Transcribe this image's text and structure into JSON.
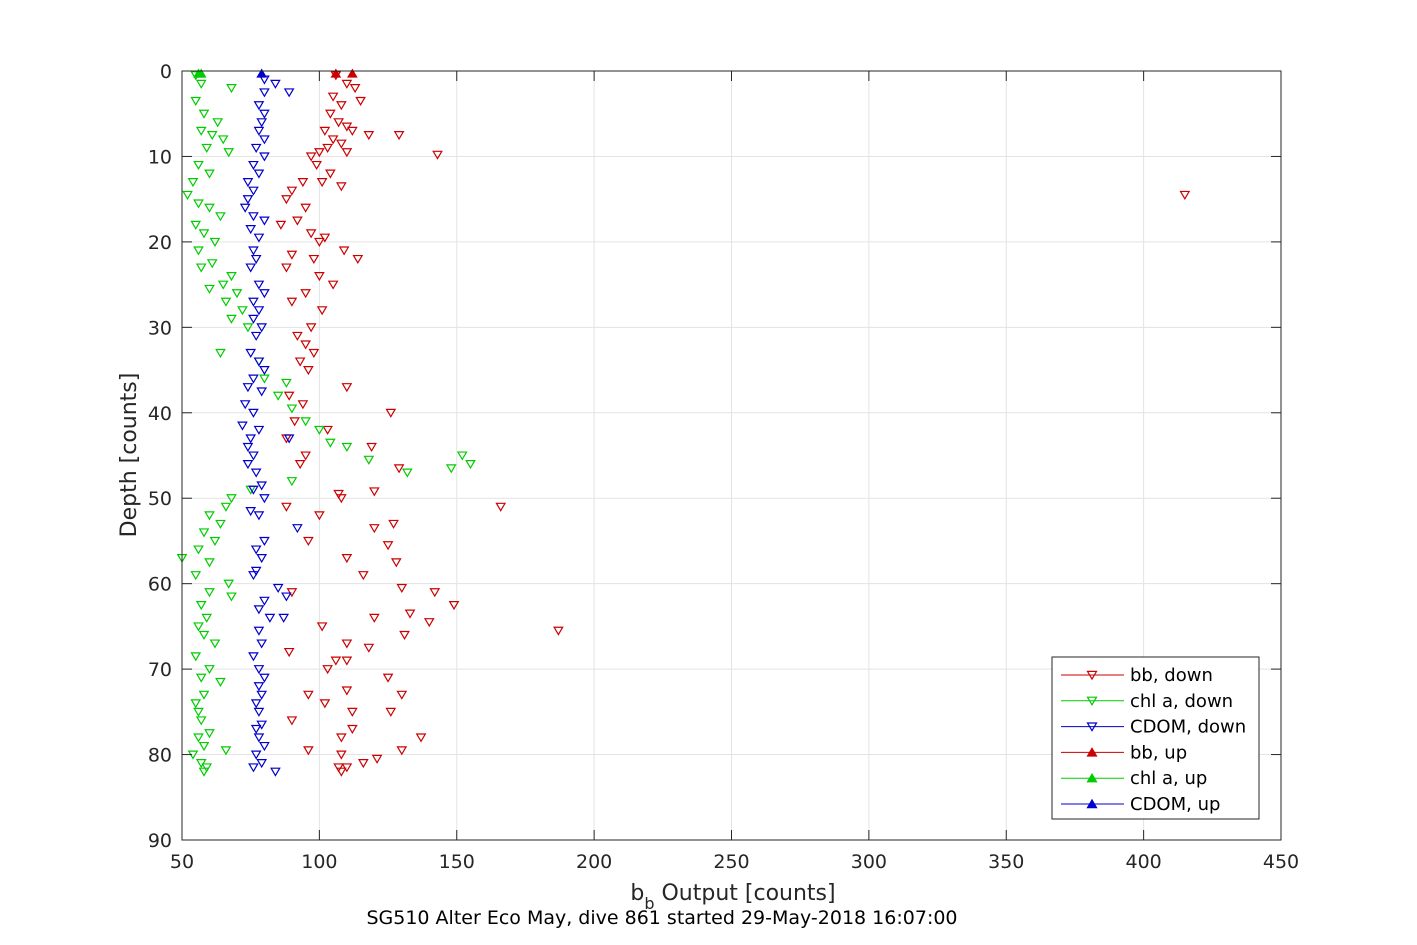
{
  "chart_data": {
    "type": "scatter",
    "xlabel_main": "b",
    "xlabel_sub": "b",
    "xlabel_rest": " Output [counts]",
    "ylabel": "Depth [counts]",
    "caption": "SG510 Alter Eco May, dive 861 started 29-May-2018 16:07:00",
    "xlim": [
      50,
      450
    ],
    "ylim": [
      0,
      90
    ],
    "y_reversed": true,
    "xticks": [
      50,
      100,
      150,
      200,
      250,
      300,
      350,
      400,
      450
    ],
    "yticks": [
      0,
      10,
      20,
      30,
      40,
      50,
      60,
      70,
      80,
      90
    ],
    "grid": true,
    "legend_position": "bottom-right",
    "series": [
      {
        "name": "bb, down",
        "color": "#cc0000",
        "marker": "down",
        "points": [
          [
            106,
            0.5
          ],
          [
            110,
            1.5
          ],
          [
            113,
            2
          ],
          [
            105,
            3
          ],
          [
            108,
            4
          ],
          [
            115,
            3.5
          ],
          [
            104,
            5
          ],
          [
            107,
            6
          ],
          [
            110,
            6.5
          ],
          [
            112,
            7
          ],
          [
            118,
            7.5
          ],
          [
            129,
            7.5
          ],
          [
            102,
            7
          ],
          [
            105,
            8
          ],
          [
            108,
            8.5
          ],
          [
            103,
            9
          ],
          [
            100,
            9.5
          ],
          [
            110,
            9.5
          ],
          [
            97,
            10
          ],
          [
            143,
            9.8
          ],
          [
            99,
            11
          ],
          [
            104,
            12
          ],
          [
            101,
            13
          ],
          [
            108,
            13.5
          ],
          [
            94,
            13
          ],
          [
            90,
            14
          ],
          [
            88,
            15
          ],
          [
            95,
            16
          ],
          [
            92,
            17.5
          ],
          [
            86,
            18
          ],
          [
            97,
            19
          ],
          [
            102,
            19.5
          ],
          [
            100,
            20
          ],
          [
            109,
            21
          ],
          [
            90,
            21.5
          ],
          [
            98,
            22
          ],
          [
            114,
            22
          ],
          [
            88,
            23
          ],
          [
            100,
            24
          ],
          [
            105,
            25
          ],
          [
            95,
            26
          ],
          [
            90,
            27
          ],
          [
            101,
            28
          ],
          [
            97,
            30
          ],
          [
            92,
            31
          ],
          [
            95,
            32
          ],
          [
            98,
            33
          ],
          [
            93,
            34
          ],
          [
            96,
            35
          ],
          [
            110,
            37
          ],
          [
            89,
            38
          ],
          [
            94,
            39
          ],
          [
            126,
            40
          ],
          [
            91,
            41
          ],
          [
            103,
            42
          ],
          [
            88,
            43
          ],
          [
            119,
            44
          ],
          [
            95,
            45
          ],
          [
            93,
            46
          ],
          [
            129,
            46.5
          ],
          [
            107,
            49.5
          ],
          [
            120,
            49.2
          ],
          [
            108,
            50
          ],
          [
            166,
            51
          ],
          [
            88,
            51
          ],
          [
            100,
            52
          ],
          [
            127,
            53
          ],
          [
            120,
            53.5
          ],
          [
            96,
            55
          ],
          [
            125,
            55.5
          ],
          [
            110,
            57
          ],
          [
            128,
            57.5
          ],
          [
            116,
            59
          ],
          [
            130,
            60.5
          ],
          [
            90,
            61
          ],
          [
            142,
            61
          ],
          [
            149,
            62.5
          ],
          [
            120,
            64
          ],
          [
            133,
            63.5
          ],
          [
            140,
            64.5
          ],
          [
            101,
            65
          ],
          [
            187,
            65.5
          ],
          [
            131,
            66
          ],
          [
            110,
            67
          ],
          [
            118,
            67.5
          ],
          [
            89,
            68
          ],
          [
            106,
            69
          ],
          [
            110,
            69
          ],
          [
            103,
            70
          ],
          [
            125,
            71
          ],
          [
            96,
            73
          ],
          [
            110,
            72.5
          ],
          [
            130,
            73
          ],
          [
            102,
            74
          ],
          [
            112,
            75
          ],
          [
            126,
            75
          ],
          [
            90,
            76
          ],
          [
            112,
            77
          ],
          [
            108,
            78
          ],
          [
            137,
            78
          ],
          [
            96,
            79.5
          ],
          [
            130,
            79.5
          ],
          [
            108,
            80
          ],
          [
            121,
            80.5
          ],
          [
            116,
            81
          ],
          [
            107,
            81.5
          ],
          [
            110,
            81.5
          ],
          [
            108,
            82
          ],
          [
            415,
            14.5
          ]
        ]
      },
      {
        "name": "chl a, down",
        "color": "#00cc00",
        "marker": "down",
        "points": [
          [
            55,
            0.5
          ],
          [
            57,
            1.5
          ],
          [
            68,
            2
          ],
          [
            55,
            3.5
          ],
          [
            58,
            5
          ],
          [
            63,
            6
          ],
          [
            57,
            7
          ],
          [
            61,
            7.5
          ],
          [
            65,
            8
          ],
          [
            59,
            9
          ],
          [
            67,
            9.5
          ],
          [
            56,
            11
          ],
          [
            60,
            12
          ],
          [
            54,
            13
          ],
          [
            52,
            14.5
          ],
          [
            56,
            15.5
          ],
          [
            60,
            16
          ],
          [
            64,
            17
          ],
          [
            55,
            18
          ],
          [
            58,
            19
          ],
          [
            62,
            20
          ],
          [
            56,
            21
          ],
          [
            61,
            22.5
          ],
          [
            57,
            23
          ],
          [
            68,
            24
          ],
          [
            65,
            25
          ],
          [
            60,
            25.5
          ],
          [
            70,
            26
          ],
          [
            66,
            27
          ],
          [
            72,
            28
          ],
          [
            68,
            29
          ],
          [
            74,
            30
          ],
          [
            64,
            33
          ],
          [
            78,
            34
          ],
          [
            80,
            36
          ],
          [
            88,
            36.5
          ],
          [
            85,
            38
          ],
          [
            90,
            39.5
          ],
          [
            95,
            41
          ],
          [
            100,
            42
          ],
          [
            104,
            43.5
          ],
          [
            110,
            44
          ],
          [
            118,
            45.5
          ],
          [
            152,
            45
          ],
          [
            155,
            46
          ],
          [
            132,
            47
          ],
          [
            148,
            46.5
          ],
          [
            90,
            48
          ],
          [
            75,
            49
          ],
          [
            68,
            50
          ],
          [
            66,
            51
          ],
          [
            60,
            52
          ],
          [
            64,
            53
          ],
          [
            58,
            54
          ],
          [
            62,
            55
          ],
          [
            56,
            56
          ],
          [
            60,
            57.5
          ],
          [
            50,
            57
          ],
          [
            55,
            59
          ],
          [
            67,
            60
          ],
          [
            60,
            61
          ],
          [
            68,
            61.5
          ],
          [
            57,
            62.5
          ],
          [
            59,
            64
          ],
          [
            56,
            65
          ],
          [
            58,
            66
          ],
          [
            62,
            67
          ],
          [
            55,
            68.5
          ],
          [
            60,
            70
          ],
          [
            57,
            71
          ],
          [
            64,
            71.5
          ],
          [
            58,
            73
          ],
          [
            55,
            74
          ],
          [
            56,
            75
          ],
          [
            57,
            76
          ],
          [
            60,
            77.5
          ],
          [
            56,
            78
          ],
          [
            58,
            79
          ],
          [
            66,
            79.5
          ],
          [
            54,
            80
          ],
          [
            57,
            81
          ],
          [
            59,
            81.5
          ],
          [
            58,
            82
          ]
        ]
      },
      {
        "name": "CDOM, down",
        "color": "#0000cc",
        "marker": "down",
        "points": [
          [
            80,
            1
          ],
          [
            84,
            1.5
          ],
          [
            80,
            2.5
          ],
          [
            89,
            2.5
          ],
          [
            78,
            4
          ],
          [
            80,
            5
          ],
          [
            79,
            6
          ],
          [
            78,
            7
          ],
          [
            80,
            8
          ],
          [
            77,
            9
          ],
          [
            80,
            10
          ],
          [
            76,
            11
          ],
          [
            78,
            12
          ],
          [
            74,
            13
          ],
          [
            76,
            14
          ],
          [
            74,
            15
          ],
          [
            73,
            16
          ],
          [
            76,
            17
          ],
          [
            80,
            17.5
          ],
          [
            75,
            18.5
          ],
          [
            78,
            19.5
          ],
          [
            76,
            21
          ],
          [
            77,
            22
          ],
          [
            75,
            23
          ],
          [
            78,
            25
          ],
          [
            80,
            26
          ],
          [
            76,
            27
          ],
          [
            78,
            28
          ],
          [
            76,
            29
          ],
          [
            79,
            30
          ],
          [
            77,
            31
          ],
          [
            75,
            33
          ],
          [
            78,
            34
          ],
          [
            80,
            35
          ],
          [
            76,
            36
          ],
          [
            74,
            37
          ],
          [
            79,
            37.5
          ],
          [
            73,
            39
          ],
          [
            76,
            40
          ],
          [
            72,
            41.5
          ],
          [
            78,
            42
          ],
          [
            75,
            43
          ],
          [
            89,
            43
          ],
          [
            74,
            44
          ],
          [
            76,
            45
          ],
          [
            74,
            46
          ],
          [
            77,
            47
          ],
          [
            79,
            48.5
          ],
          [
            76,
            49
          ],
          [
            80,
            50
          ],
          [
            75,
            51.5
          ],
          [
            78,
            52
          ],
          [
            92,
            53.5
          ],
          [
            80,
            55
          ],
          [
            77,
            56
          ],
          [
            79,
            57
          ],
          [
            77,
            58.5
          ],
          [
            76,
            59
          ],
          [
            85,
            60.5
          ],
          [
            88,
            61.5
          ],
          [
            80,
            62
          ],
          [
            78,
            63
          ],
          [
            82,
            64
          ],
          [
            87,
            64
          ],
          [
            78,
            65.5
          ],
          [
            79,
            67
          ],
          [
            76,
            68.5
          ],
          [
            78,
            70
          ],
          [
            80,
            71
          ],
          [
            78,
            72
          ],
          [
            79,
            73
          ],
          [
            77,
            74
          ],
          [
            78,
            75
          ],
          [
            79,
            76.5
          ],
          [
            77,
            77
          ],
          [
            78,
            78
          ],
          [
            80,
            79
          ],
          [
            77,
            80
          ],
          [
            79,
            81
          ],
          [
            76,
            81.5
          ],
          [
            84,
            82
          ]
        ]
      },
      {
        "name": "bb, up",
        "color": "#cc0000",
        "marker": "up",
        "points": [
          [
            106,
            0.3
          ],
          [
            112,
            0.3
          ]
        ]
      },
      {
        "name": "chl a, up",
        "color": "#00cc00",
        "marker": "up",
        "points": [
          [
            56,
            0.3
          ],
          [
            57,
            0.3
          ]
        ]
      },
      {
        "name": "CDOM, up",
        "color": "#0000cc",
        "marker": "up",
        "points": [
          [
            79,
            0.3
          ]
        ]
      }
    ]
  }
}
